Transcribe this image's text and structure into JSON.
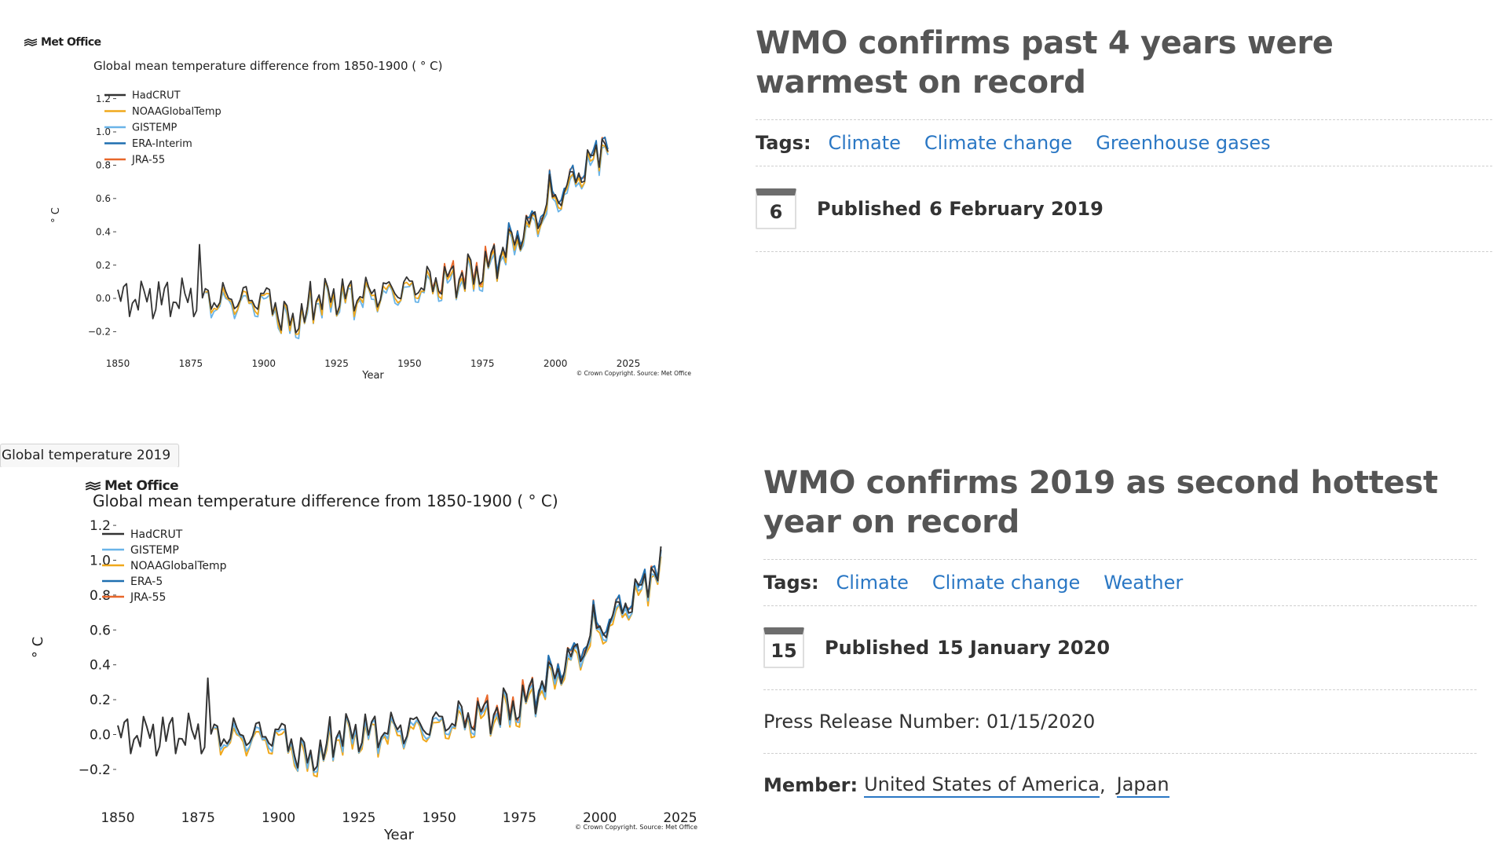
{
  "chart1": {
    "logo": "Met Office",
    "credit": "© Crown Copyright. Source: Met Office"
  },
  "chart2": {
    "logo": "Met Office",
    "credit": "© Crown Copyright. Source: Met Office"
  },
  "tooltip": "Global temperature 2019",
  "article1": {
    "title": "WMO confirms past 4 years were warmest on record",
    "tags_label": "Tags:",
    "tags": [
      "Climate",
      "Climate change",
      "Greenhouse gases"
    ],
    "published_day": "6",
    "published_label": "Published",
    "published_date": "6 February 2019"
  },
  "article2": {
    "title": "WMO confirms 2019 as second hottest year on record",
    "tags_label": "Tags:",
    "tags": [
      "Climate",
      "Climate change",
      "Weather"
    ],
    "published_day": "15",
    "published_label": "Published",
    "published_date": "15 January 2020",
    "press_release": "Press Release Number: 01/15/2020",
    "member_label": "Member:",
    "members": [
      "United States of America",
      "Japan"
    ],
    "member_separator": ","
  },
  "chart_data": [
    {
      "type": "line",
      "title": "Global mean temperature difference from 1850-1900 ( ° C)",
      "xlabel": "Year",
      "ylabel": "° C",
      "xlim": [
        1850,
        2025
      ],
      "ylim": [
        -0.25,
        1.25
      ],
      "x_ticks": [
        "1850",
        "1875",
        "1900",
        "1925",
        "1950",
        "1975",
        "2000",
        "2025"
      ],
      "y_ticks": [
        "−0.2",
        "0.0",
        "0.2",
        "0.4",
        "0.6",
        "0.8",
        "1.0",
        "1.2"
      ],
      "legend_position": "top-left",
      "end_year": 2018,
      "series": [
        {
          "name": "HadCRUT",
          "color": "#333333",
          "start": 1850
        },
        {
          "name": "NOAAGlobalTemp",
          "color": "#f0a81c",
          "start": 1880
        },
        {
          "name": "GISTEMP",
          "color": "#6ab4e8",
          "start": 1880
        },
        {
          "name": "ERA-Interim",
          "color": "#1f6fb0",
          "start": 1979
        },
        {
          "name": "JRA-55",
          "color": "#e8672a",
          "start": 1958
        }
      ]
    },
    {
      "type": "line",
      "title": "Global mean temperature difference from 1850-1900 ( ° C)",
      "xlabel": "Year",
      "ylabel": "° C",
      "xlim": [
        1850,
        2025
      ],
      "ylim": [
        -0.25,
        1.25
      ],
      "x_ticks": [
        "1850",
        "1875",
        "1900",
        "1925",
        "1950",
        "1975",
        "2000",
        "2025"
      ],
      "y_ticks": [
        "−0.2",
        "0.0",
        "0.2",
        "0.4",
        "0.6",
        "0.8",
        "1.0",
        "1.2"
      ],
      "legend_position": "top-left",
      "end_year": 2019,
      "series": [
        {
          "name": "HadCRUT",
          "color": "#333333",
          "start": 1850
        },
        {
          "name": "GISTEMP",
          "color": "#6ab4e8",
          "start": 1880
        },
        {
          "name": "NOAAGlobalTemp",
          "color": "#f0a81c",
          "start": 1880
        },
        {
          "name": "ERA-5",
          "color": "#1f6fb0",
          "start": 1979
        },
        {
          "name": "JRA-55",
          "color": "#e8672a",
          "start": 1958
        }
      ]
    }
  ]
}
